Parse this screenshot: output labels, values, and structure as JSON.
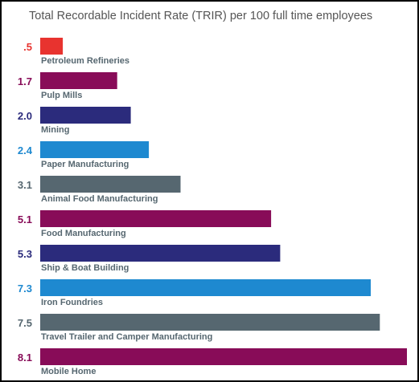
{
  "chart_data": {
    "type": "bar",
    "orientation": "horizontal",
    "title": "Total Recordable Incident Rate (TRIR) per 100 full time employees",
    "categories": [
      "Petroleum Refineries",
      "Pulp Mills",
      "Mining",
      "Paper Manufacturing",
      "Animal Food Manufacturing",
      "Food Manufacturing",
      "Ship & Boat Building",
      "Iron Foundries",
      "Travel Trailer and Camper Manufacturing",
      "Mobile Home"
    ],
    "values": [
      0.5,
      1.7,
      2.0,
      2.4,
      3.1,
      5.1,
      5.3,
      7.3,
      7.5,
      8.1
    ],
    "value_labels": [
      ".5",
      "1.7",
      "2.0",
      "2.4",
      "3.1",
      "5.1",
      "5.3",
      "7.3",
      "7.5",
      "8.1"
    ],
    "bar_colors": [
      "#e8332f",
      "#880c58",
      "#2b2b7c",
      "#1e89d0",
      "#566770",
      "#880c58",
      "#2b2b7c",
      "#1e89d0",
      "#566770",
      "#880c58"
    ],
    "value_label_colors": [
      "#e8332f",
      "#880c58",
      "#2b2b7c",
      "#1e89d0",
      "#566770",
      "#880c58",
      "#2b2b7c",
      "#1e89d0",
      "#566770",
      "#880c58"
    ],
    "category_label_color": "#566770",
    "grid": false,
    "legend": "none",
    "xlim": [
      0,
      8.3
    ]
  }
}
